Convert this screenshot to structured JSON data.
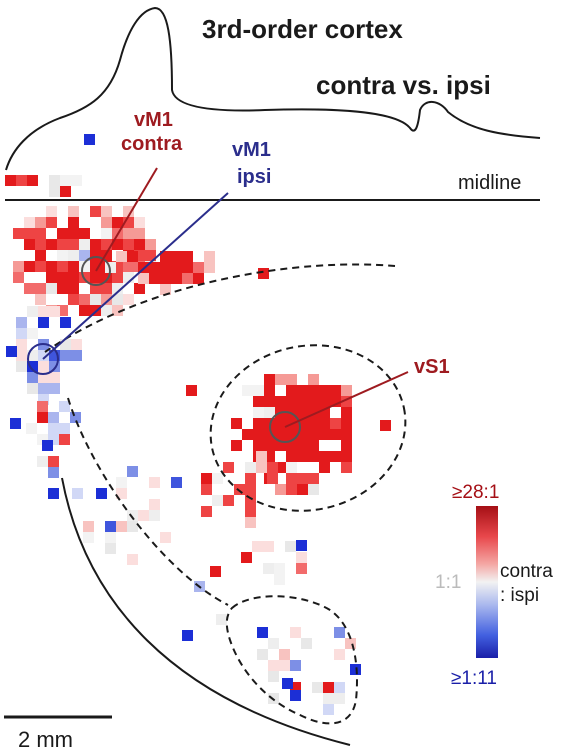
{
  "title_line1": "3rd-order cortex",
  "title_line2": "contra vs. ipsi",
  "labels": {
    "midline": "midline",
    "vm1_contra_a": "vM1",
    "vm1_contra_b": "contra",
    "vm1_ipsi_a": "vM1",
    "vm1_ipsi_b": "ipsi",
    "vs1": "vS1"
  },
  "scale_bar": {
    "label": "2 mm"
  },
  "colorbar": {
    "max_label": "≥28:1",
    "mid_label": "1:1",
    "min_label": "≥1:11",
    "axis_label_1": "contra",
    "axis_label_2": ": ispi"
  },
  "colors": {
    "contra": "#9e1b20",
    "ipsi": "#2b2e8c",
    "strong_red": "#e31a1c",
    "strong_blue": "#1c2fd6",
    "neutral": "#eeeeee"
  }
}
